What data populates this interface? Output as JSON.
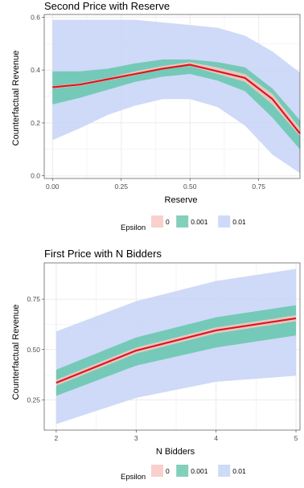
{
  "figure": {
    "charts": [
      {
        "title": "Second Price with Reserve",
        "xlabel": "Reserve",
        "ylabel": "Counterfactual Revenue"
      },
      {
        "title": "First Price with N Bidders",
        "xlabel": "N Bidders",
        "ylabel": "Counterfactual Revenue"
      }
    ],
    "legend_title": "Epsilon"
  },
  "chart_data": [
    {
      "type": "area",
      "title": "Second Price with Reserve",
      "xlabel": "Reserve",
      "ylabel": "Counterfactual Revenue",
      "xlim": [
        -0.03,
        0.9
      ],
      "ylim": [
        -0.01,
        0.61
      ],
      "xticks": [
        0,
        0.25,
        0.5,
        0.75
      ],
      "xtick_labels": [
        "0.00",
        "0.25",
        "0.50",
        "0.75"
      ],
      "yticks": [
        0,
        0.2,
        0.4,
        0.6
      ],
      "ytick_labels": [
        "0.0",
        "0.2",
        "0.4",
        "0.6"
      ],
      "grid": true,
      "legend": {
        "title": "Epsilon",
        "position": "bottom"
      },
      "x": [
        0,
        0.1,
        0.2,
        0.3,
        0.4,
        0.5,
        0.6,
        0.7,
        0.8,
        0.9
      ],
      "series": [
        {
          "name": "0.01",
          "color": "#c5d4f6",
          "lower": [
            0.135,
            0.18,
            0.23,
            0.265,
            0.29,
            0.29,
            0.26,
            0.19,
            0.08,
            0.01
          ],
          "upper": [
            0.59,
            0.59,
            0.59,
            0.59,
            0.58,
            0.57,
            0.56,
            0.53,
            0.47,
            0.39
          ]
        },
        {
          "name": "0.001",
          "color": "#6cc7b0",
          "lower": [
            0.27,
            0.295,
            0.325,
            0.355,
            0.375,
            0.385,
            0.36,
            0.32,
            0.22,
            0.1
          ],
          "upper": [
            0.395,
            0.395,
            0.405,
            0.425,
            0.44,
            0.44,
            0.43,
            0.41,
            0.33,
            0.21
          ]
        },
        {
          "name": "0",
          "color": "#f8c8c2",
          "lower": [
            0.33,
            0.34,
            0.36,
            0.38,
            0.405,
            0.415,
            0.385,
            0.355,
            0.27,
            0.15
          ],
          "upper": [
            0.34,
            0.35,
            0.37,
            0.395,
            0.415,
            0.43,
            0.41,
            0.385,
            0.31,
            0.18
          ],
          "mean": [
            0.335,
            0.345,
            0.365,
            0.385,
            0.405,
            0.42,
            0.395,
            0.37,
            0.29,
            0.16
          ]
        }
      ]
    },
    {
      "type": "area",
      "title": "First Price with N Bidders",
      "xlabel": "N Bidders",
      "ylabel": "Counterfactual Revenue",
      "xlim": [
        1.85,
        5.05
      ],
      "ylim": [
        0.1,
        0.93
      ],
      "xticks": [
        2,
        3,
        4,
        5
      ],
      "xtick_labels": [
        "2",
        "3",
        "4",
        "5"
      ],
      "yticks": [
        0.25,
        0.5,
        0.75
      ],
      "ytick_labels": [
        "0.25",
        "0.50",
        "0.75"
      ],
      "grid": true,
      "legend": {
        "title": "Epsilon",
        "position": "bottom"
      },
      "x": [
        2,
        3,
        4,
        5
      ],
      "series": [
        {
          "name": "0.01",
          "color": "#c5d4f6",
          "lower": [
            0.13,
            0.26,
            0.34,
            0.37
          ],
          "upper": [
            0.59,
            0.74,
            0.84,
            0.9
          ]
        },
        {
          "name": "0.001",
          "color": "#6cc7b0",
          "lower": [
            0.27,
            0.42,
            0.51,
            0.57
          ],
          "upper": [
            0.4,
            0.56,
            0.66,
            0.72
          ]
        },
        {
          "name": "0",
          "color": "#f8c8c2",
          "lower": [
            0.32,
            0.48,
            0.58,
            0.64
          ],
          "upper": [
            0.35,
            0.51,
            0.61,
            0.67
          ],
          "mean": [
            0.335,
            0.495,
            0.595,
            0.655
          ]
        }
      ]
    }
  ],
  "colors": {
    "mean_line": "#e0141e",
    "grid": "#ebebeb",
    "axis": "#333333",
    "overlap": "#7f9f94"
  }
}
